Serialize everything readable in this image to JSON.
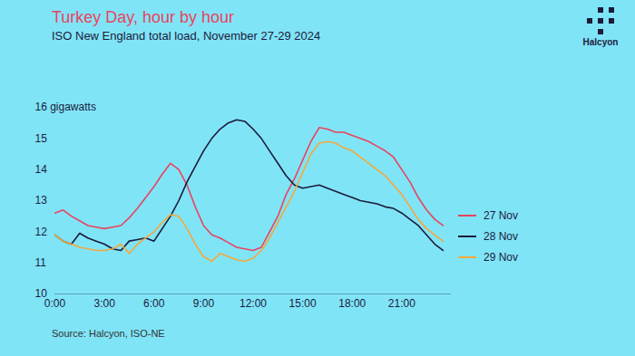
{
  "chart_data": {
    "type": "line",
    "title": "Turkey Day, hour by hour",
    "subtitle": "ISO New England total load, November 27-29 2024",
    "source": "Source: Halcyon, ISO-NE",
    "logo": "Halcyon",
    "x": [
      0,
      0.5,
      1,
      1.5,
      2,
      2.5,
      3,
      3.5,
      4,
      4.5,
      5,
      5.5,
      6,
      6.5,
      7,
      7.5,
      8,
      8.5,
      9,
      9.5,
      10,
      10.5,
      11,
      11.5,
      12,
      12.5,
      13,
      13.5,
      14,
      14.5,
      15,
      15.5,
      16,
      16.5,
      17,
      17.5,
      18,
      18.5,
      19,
      19.5,
      20,
      20.5,
      21,
      21.5,
      22,
      22.5,
      23,
      23.5
    ],
    "xlim": [
      0,
      24
    ],
    "xticks": [
      {
        "value": 0,
        "label": "0:00"
      },
      {
        "value": 3,
        "label": "3:00"
      },
      {
        "value": 6,
        "label": "6:00"
      },
      {
        "value": 9,
        "label": "9:00"
      },
      {
        "value": 12,
        "label": "12:00"
      },
      {
        "value": 15,
        "label": "15:00"
      },
      {
        "value": 18,
        "label": "18:00"
      },
      {
        "value": 21,
        "label": "21:00"
      }
    ],
    "ylim": [
      10,
      16
    ],
    "yticks": [
      10,
      11,
      12,
      13,
      14,
      15,
      {
        "value": 16,
        "label": "16 gigawatts"
      }
    ],
    "grid": false,
    "legend": "right",
    "series": [
      {
        "name": "27 Nov",
        "color": "#e8445f",
        "values": [
          12.6,
          12.7,
          12.5,
          12.35,
          12.2,
          12.15,
          12.1,
          12.15,
          12.2,
          12.45,
          12.75,
          13.1,
          13.45,
          13.85,
          14.2,
          14.0,
          13.5,
          12.8,
          12.2,
          11.9,
          11.8,
          11.65,
          11.5,
          11.45,
          11.4,
          11.5,
          12.0,
          12.5,
          13.2,
          13.7,
          14.3,
          14.9,
          15.35,
          15.3,
          15.2,
          15.2,
          15.1,
          15.0,
          14.9,
          14.75,
          14.6,
          14.4,
          14.0,
          13.6,
          13.1,
          12.7,
          12.4,
          12.2
        ]
      },
      {
        "name": "28 Nov",
        "color": "#1b1b3a",
        "values": [
          11.9,
          11.7,
          11.6,
          11.95,
          11.8,
          11.7,
          11.6,
          11.45,
          11.4,
          11.7,
          11.75,
          11.8,
          11.7,
          12.1,
          12.5,
          13.0,
          13.6,
          14.1,
          14.6,
          15.0,
          15.3,
          15.5,
          15.6,
          15.55,
          15.3,
          15.0,
          14.6,
          14.2,
          13.8,
          13.5,
          13.4,
          13.45,
          13.5,
          13.4,
          13.3,
          13.2,
          13.1,
          13.0,
          12.95,
          12.9,
          12.8,
          12.75,
          12.6,
          12.4,
          12.2,
          11.9,
          11.6,
          11.4
        ]
      },
      {
        "name": "29 Nov",
        "color": "#f3a93c",
        "values": [
          11.9,
          11.7,
          11.6,
          11.5,
          11.45,
          11.4,
          11.4,
          11.45,
          11.6,
          11.3,
          11.6,
          11.8,
          12.0,
          12.3,
          12.55,
          12.5,
          12.1,
          11.6,
          11.2,
          11.05,
          11.3,
          11.2,
          11.1,
          11.05,
          11.15,
          11.4,
          11.8,
          12.3,
          12.8,
          13.3,
          13.9,
          14.5,
          14.85,
          14.9,
          14.85,
          14.7,
          14.6,
          14.4,
          14.2,
          14.0,
          13.8,
          13.5,
          13.2,
          12.8,
          12.4,
          12.1,
          11.9,
          11.7
        ]
      }
    ]
  }
}
